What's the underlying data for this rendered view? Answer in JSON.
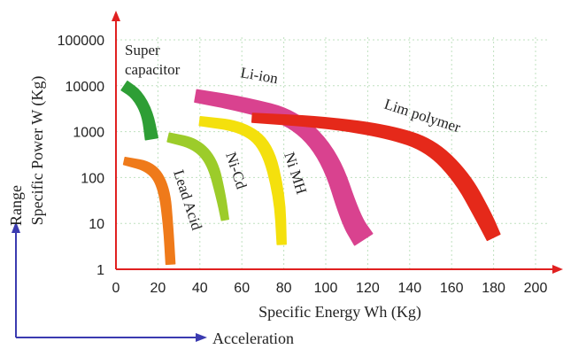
{
  "chart_data": {
    "type": "area",
    "xlabel": "Specific Energy Wh (Kg)",
    "ylabel": "Specific Power W (Kg)",
    "y_range_label": "Range",
    "x_acceleration_label": "Acceleration",
    "x_ticks": [
      0,
      20,
      40,
      60,
      80,
      100,
      120,
      140,
      160,
      180,
      200
    ],
    "y_ticks": [
      1,
      10,
      100,
      1000,
      10000,
      100000
    ],
    "y_tick_labels": [
      "1",
      "10",
      "100",
      "1000",
      "10000",
      "100000"
    ],
    "xlim": [
      0,
      205
    ],
    "ylim": [
      1,
      150000
    ],
    "y_scale": "log",
    "grid": true,
    "series": [
      {
        "name": "Super capacitor",
        "color": "#2e9e35",
        "centerline": [
          [
            4,
            10000
          ],
          [
            10,
            6500
          ],
          [
            15,
            2500
          ],
          [
            17,
            700
          ]
        ],
        "widths": [
          6,
          6,
          6,
          7
        ],
        "label_lines": [
          "Super",
          "capacitor"
        ]
      },
      {
        "name": "Lead Acid",
        "color": "#ef7a1a",
        "centerline": [
          [
            4,
            230
          ],
          [
            17,
            170
          ],
          [
            23,
            60
          ],
          [
            25,
            8
          ],
          [
            26,
            1.3
          ]
        ],
        "widths": [
          4,
          6,
          6,
          5,
          5
        ],
        "label_lines": [
          "Lead Acid"
        ]
      },
      {
        "name": "Ni-Cd",
        "color": "#9ccc2a",
        "centerline": [
          [
            25,
            750
          ],
          [
            38,
            550
          ],
          [
            46,
            220
          ],
          [
            50,
            40
          ],
          [
            52,
            12
          ]
        ],
        "widths": [
          5,
          6,
          6,
          5,
          4
        ],
        "label_lines": [
          "Ni-Cd"
        ]
      },
      {
        "name": "Ni MH",
        "color": "#f4e00d",
        "centerline": [
          [
            40,
            1700
          ],
          [
            60,
            1300
          ],
          [
            72,
            500
          ],
          [
            78,
            40
          ],
          [
            79,
            3.5
          ]
        ],
        "widths": [
          5,
          6,
          7,
          6,
          5
        ],
        "label_lines": [
          "Ni MH"
        ]
      },
      {
        "name": "Li-ion",
        "color": "#d9428f",
        "centerline": [
          [
            38,
            6000
          ],
          [
            60,
            4000
          ],
          [
            85,
            2000
          ],
          [
            102,
            300
          ],
          [
            112,
            12
          ],
          [
            118,
            4.5
          ]
        ],
        "widths": [
          7,
          8,
          9,
          10,
          11,
          12
        ],
        "label_lines": [
          "Li-ion"
        ]
      },
      {
        "name": "Lim polymer",
        "color": "#e5291a",
        "centerline": [
          [
            65,
            2000
          ],
          [
            100,
            1600
          ],
          [
            130,
            1000
          ],
          [
            150,
            500
          ],
          [
            165,
            100
          ],
          [
            175,
            15
          ],
          [
            180,
            5
          ]
        ],
        "widths": [
          5,
          6,
          7,
          8,
          9,
          9,
          8
        ],
        "label_lines": [
          "Lim polymer"
        ]
      }
    ]
  }
}
